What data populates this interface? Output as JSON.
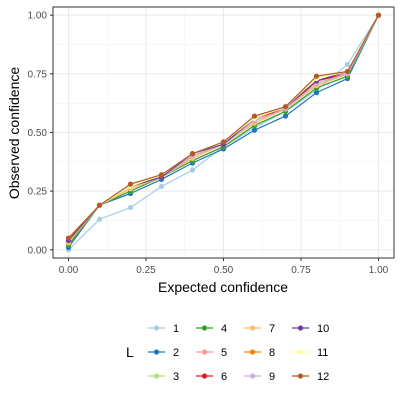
{
  "chart_data": {
    "type": "line",
    "xlabel": "Expected confidence",
    "ylabel": "Observed confidence",
    "xlim": [
      -0.05,
      1.05
    ],
    "ylim": [
      -0.035,
      1.035
    ],
    "x_ticks": [
      0.0,
      0.25,
      0.5,
      0.75,
      1.0
    ],
    "x_tick_labels": [
      "0.00",
      "0.25",
      "0.50",
      "0.75",
      "1.00"
    ],
    "y_ticks": [
      0.0,
      0.25,
      0.5,
      0.75,
      1.0
    ],
    "y_tick_labels": [
      "0.00",
      "0.25",
      "0.50",
      "0.75",
      "1.00"
    ],
    "grid": true,
    "legend_title": "L",
    "legend_position": "bottom",
    "x": [
      0.0,
      0.1,
      0.2,
      0.3,
      0.4,
      0.5,
      0.6,
      0.7,
      0.8,
      0.9,
      1.0
    ],
    "series": [
      {
        "name": "1",
        "color": "#A6CEE3",
        "values": [
          0.0,
          0.13,
          0.18,
          0.27,
          0.34,
          0.44,
          0.52,
          0.59,
          0.68,
          0.79,
          1.0
        ]
      },
      {
        "name": "2",
        "color": "#1F78B4",
        "values": [
          0.01,
          0.19,
          0.24,
          0.3,
          0.37,
          0.43,
          0.51,
          0.57,
          0.67,
          0.73,
          1.0
        ]
      },
      {
        "name": "3",
        "color": "#B2DF8A",
        "values": [
          0.02,
          0.19,
          0.25,
          0.31,
          0.38,
          0.44,
          0.53,
          0.59,
          0.69,
          0.74,
          1.0
        ]
      },
      {
        "name": "4",
        "color": "#33A02C",
        "values": [
          0.02,
          0.19,
          0.25,
          0.31,
          0.38,
          0.44,
          0.53,
          0.59,
          0.69,
          0.74,
          1.0
        ]
      },
      {
        "name": "5",
        "color": "#FB9A99",
        "values": [
          0.03,
          0.19,
          0.26,
          0.31,
          0.39,
          0.45,
          0.54,
          0.6,
          0.7,
          0.75,
          1.0
        ]
      },
      {
        "name": "6",
        "color": "#E31A1C",
        "values": [
          0.04,
          0.19,
          0.27,
          0.31,
          0.4,
          0.45,
          0.56,
          0.6,
          0.72,
          0.75,
          1.0
        ]
      },
      {
        "name": "7",
        "color": "#FDBF6F",
        "values": [
          0.03,
          0.19,
          0.26,
          0.31,
          0.39,
          0.45,
          0.54,
          0.6,
          0.7,
          0.75,
          1.0
        ]
      },
      {
        "name": "8",
        "color": "#FF7F00",
        "values": [
          0.04,
          0.19,
          0.27,
          0.31,
          0.4,
          0.45,
          0.55,
          0.6,
          0.71,
          0.75,
          1.0
        ]
      },
      {
        "name": "9",
        "color": "#CAB2D6",
        "values": [
          0.04,
          0.19,
          0.27,
          0.31,
          0.4,
          0.45,
          0.55,
          0.6,
          0.71,
          0.75,
          1.0
        ]
      },
      {
        "name": "10",
        "color": "#6A3D9A",
        "values": [
          0.04,
          0.19,
          0.27,
          0.31,
          0.41,
          0.45,
          0.56,
          0.61,
          0.72,
          0.76,
          1.0
        ]
      },
      {
        "name": "11",
        "color": "#FFFF99",
        "values": [
          0.05,
          0.19,
          0.27,
          0.32,
          0.41,
          0.46,
          0.56,
          0.61,
          0.73,
          0.76,
          1.0
        ]
      },
      {
        "name": "12",
        "color": "#B15928",
        "values": [
          0.05,
          0.19,
          0.28,
          0.32,
          0.41,
          0.46,
          0.57,
          0.61,
          0.74,
          0.76,
          1.0
        ]
      }
    ]
  }
}
